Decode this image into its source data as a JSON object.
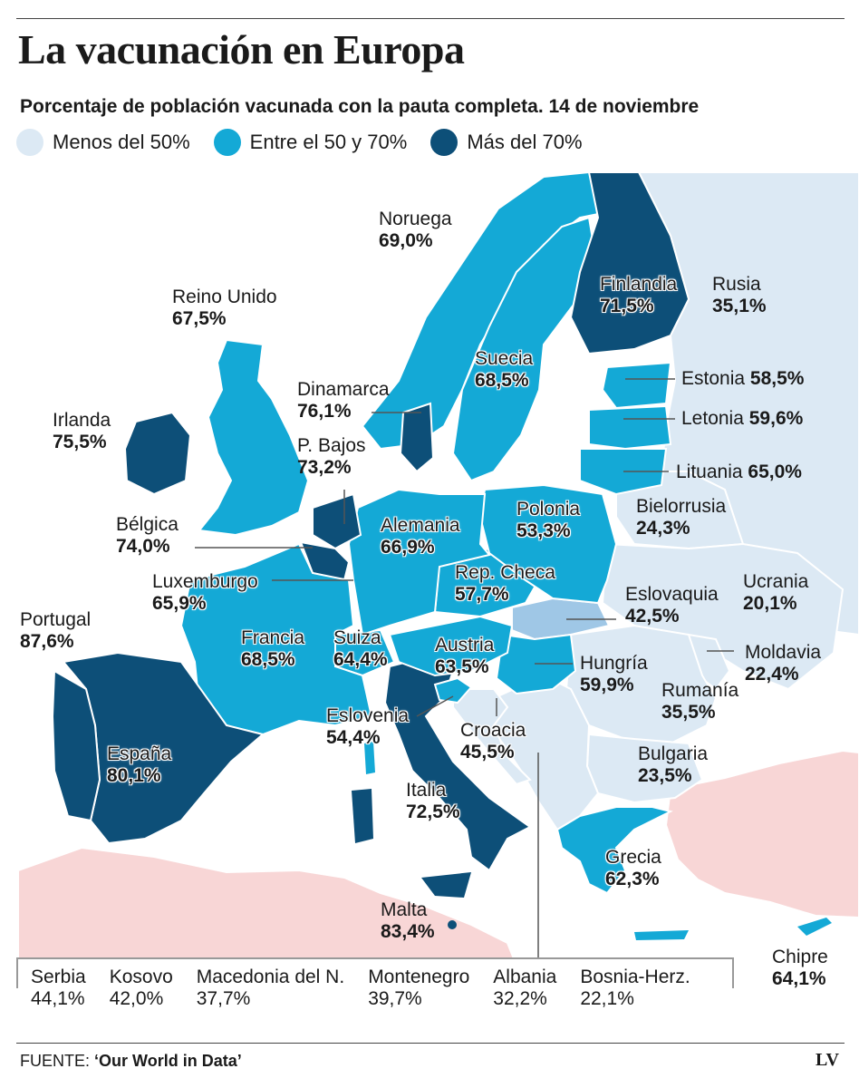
{
  "title": "La vacunación en Europa",
  "subtitle": "Porcentaje de población vacunada con la pauta completa. 14 de noviembre",
  "legend": [
    {
      "label": "Menos del 50%",
      "color": "#dce9f4"
    },
    {
      "label": "Entre el 50 y 70%",
      "color": "#14a9d6"
    },
    {
      "label": "Más del 70%",
      "color": "#0d4f78"
    }
  ],
  "colors": {
    "sea": "#ffffff",
    "non_europe": "#f8d6d6",
    "low": "#dce9f4",
    "mid": "#14a9d6",
    "high": "#0d4f78",
    "slovakia": "#9fc7e6"
  },
  "countries": {
    "noruega": {
      "name": "Noruega",
      "value": "69,0%"
    },
    "finlandia": {
      "name": "Finlandia",
      "value": "71,5%"
    },
    "rusia": {
      "name": "Rusia",
      "value": "35,1%"
    },
    "reino_unido": {
      "name": "Reino Unido",
      "value": "67,5%"
    },
    "suecia": {
      "name": "Suecia",
      "value": "68,5%"
    },
    "estonia": {
      "name": "Estonia",
      "value": "58,5%"
    },
    "dinamarca": {
      "name": "Dinamarca",
      "value": "76,1%"
    },
    "irlanda": {
      "name": "Irlanda",
      "value": "75,5%"
    },
    "letonia": {
      "name": "Letonia",
      "value": "59,6%"
    },
    "paises_bajos": {
      "name": "P. Bajos",
      "value": "73,2%"
    },
    "lituania": {
      "name": "Lituania",
      "value": "65,0%"
    },
    "bielorrusia": {
      "name": "Bielorrusia",
      "value": "24,3%"
    },
    "polonia": {
      "name": "Polonia",
      "value": "53,3%"
    },
    "belgica": {
      "name": "Bélgica",
      "value": "74,0%"
    },
    "alemania": {
      "name": "Alemania",
      "value": "66,9%"
    },
    "luxemburgo": {
      "name": "Luxemburgo",
      "value": "65,9%"
    },
    "rep_checa": {
      "name": "Rep. Checa",
      "value": "57,7%"
    },
    "ucrania": {
      "name": "Ucrania",
      "value": "20,1%"
    },
    "eslovaquia": {
      "name": "Eslovaquia",
      "value": "42,5%"
    },
    "portugal": {
      "name": "Portugal",
      "value": "87,6%"
    },
    "francia": {
      "name": "Francia",
      "value": "68,5%"
    },
    "suiza": {
      "name": "Suiza",
      "value": "64,4%"
    },
    "austria": {
      "name": "Austria",
      "value": "63,5%"
    },
    "moldavia": {
      "name": "Moldavia",
      "value": "22,4%"
    },
    "hungria": {
      "name": "Hungría",
      "value": "59,9%"
    },
    "rumania": {
      "name": "Rumanía",
      "value": "35,5%"
    },
    "eslovenia": {
      "name": "Eslovenia",
      "value": "54,4%"
    },
    "croacia": {
      "name": "Croacia",
      "value": "45,5%"
    },
    "espana": {
      "name": "España",
      "value": "80,1%"
    },
    "bulgaria": {
      "name": "Bulgaria",
      "value": "23,5%"
    },
    "italia": {
      "name": "Italia",
      "value": "72,5%"
    },
    "grecia": {
      "name": "Grecia",
      "value": "62,3%"
    },
    "malta": {
      "name": "Malta",
      "value": "83,4%"
    },
    "chipre": {
      "name": "Chipre",
      "value": "64,1%"
    }
  },
  "balkans": [
    {
      "name": "Serbia",
      "value": "44,1%"
    },
    {
      "name": "Kosovo",
      "value": "42,0%"
    },
    {
      "name": "Macedonia del N.",
      "value": "37,7%"
    },
    {
      "name": "Montenegro",
      "value": "39,7%"
    },
    {
      "name": "Albania",
      "value": "32,2%"
    },
    {
      "name": "Bosnia-Herz.",
      "value": "22,1%"
    }
  ],
  "source": {
    "label": "FUENTE:",
    "name": "‘Our World in Data’"
  },
  "brand": "LV"
}
